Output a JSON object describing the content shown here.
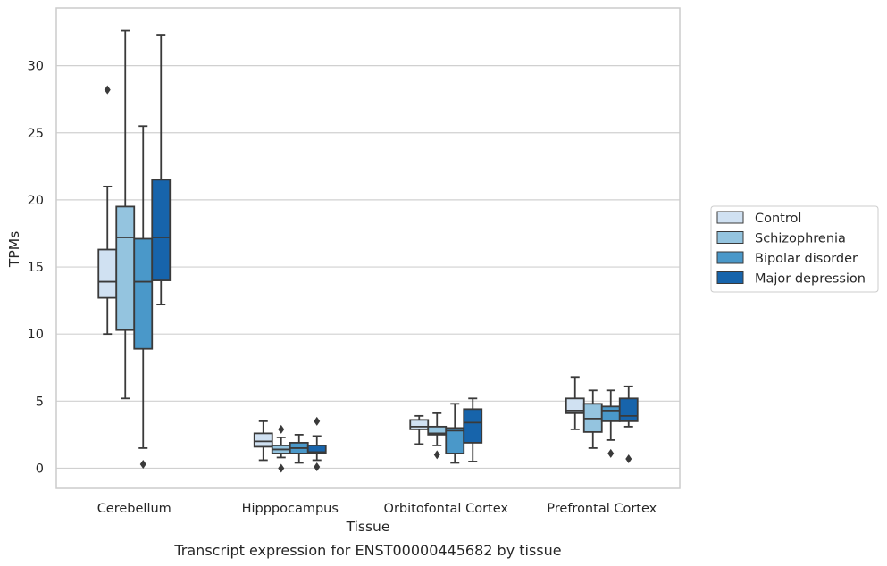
{
  "caption": "Transcript expression for ENST00000445682 by tissue",
  "chart_data": {
    "type": "box",
    "xlabel": "Tissue",
    "ylabel": "TPMs",
    "ylim": [
      -1.5,
      34.3
    ],
    "yticks": [
      0,
      5,
      10,
      15,
      20,
      25,
      30
    ],
    "grid": "horizontal",
    "legend_position": "right",
    "categories": [
      "Cerebellum",
      "Hipppocampus",
      "Orbitofontal Cortex",
      "Prefrontal Cortex"
    ],
    "series": [
      {
        "name": "Control",
        "color": "#d0e1f2",
        "boxes": [
          {
            "whisker_low": 10.0,
            "q1": 12.7,
            "median": 13.9,
            "q3": 16.3,
            "whisker_high": 21.0,
            "outliers": [
              28.2
            ]
          },
          {
            "whisker_low": 0.6,
            "q1": 1.6,
            "median": 2.0,
            "q3": 2.6,
            "whisker_high": 3.5,
            "outliers": []
          },
          {
            "whisker_low": 1.8,
            "q1": 2.9,
            "median": 3.1,
            "q3": 3.6,
            "whisker_high": 3.9,
            "outliers": []
          },
          {
            "whisker_low": 2.9,
            "q1": 4.1,
            "median": 4.3,
            "q3": 5.2,
            "whisker_high": 6.8,
            "outliers": []
          }
        ]
      },
      {
        "name": "Schizophrenia",
        "color": "#94c4df",
        "boxes": [
          {
            "whisker_low": 5.2,
            "q1": 10.3,
            "median": 17.2,
            "q3": 19.5,
            "whisker_high": 32.6,
            "outliers": []
          },
          {
            "whisker_low": 0.8,
            "q1": 1.1,
            "median": 1.4,
            "q3": 1.7,
            "whisker_high": 2.3,
            "outliers": [
              2.9,
              0.0
            ]
          },
          {
            "whisker_low": 1.7,
            "q1": 2.5,
            "median": 2.6,
            "q3": 3.1,
            "whisker_high": 4.1,
            "outliers": [
              1.0
            ]
          },
          {
            "whisker_low": 1.5,
            "q1": 2.7,
            "median": 3.7,
            "q3": 4.8,
            "whisker_high": 5.8,
            "outliers": []
          }
        ]
      },
      {
        "name": "Bipolar disorder",
        "color": "#4a98c9",
        "boxes": [
          {
            "whisker_low": 1.5,
            "q1": 8.9,
            "median": 13.9,
            "q3": 17.1,
            "whisker_high": 25.5,
            "outliers": [
              0.3
            ]
          },
          {
            "whisker_low": 0.4,
            "q1": 1.1,
            "median": 1.5,
            "q3": 1.9,
            "whisker_high": 2.5,
            "outliers": []
          },
          {
            "whisker_low": 0.4,
            "q1": 1.1,
            "median": 2.8,
            "q3": 3.0,
            "whisker_high": 4.8,
            "outliers": []
          },
          {
            "whisker_low": 2.1,
            "q1": 3.5,
            "median": 4.3,
            "q3": 4.6,
            "whisker_high": 5.8,
            "outliers": [
              1.1
            ]
          }
        ]
      },
      {
        "name": "Major depression",
        "color": "#1764ab",
        "boxes": [
          {
            "whisker_low": 12.2,
            "q1": 14.0,
            "median": 17.2,
            "q3": 21.5,
            "whisker_high": 32.3,
            "outliers": []
          },
          {
            "whisker_low": 0.6,
            "q1": 1.1,
            "median": 1.2,
            "q3": 1.7,
            "whisker_high": 2.4,
            "outliers": [
              3.5,
              0.1
            ]
          },
          {
            "whisker_low": 0.5,
            "q1": 1.9,
            "median": 3.4,
            "q3": 4.4,
            "whisker_high": 5.2,
            "outliers": []
          },
          {
            "whisker_low": 3.1,
            "q1": 3.5,
            "median": 3.9,
            "q3": 5.2,
            "whisker_high": 6.1,
            "outliers": [
              0.7
            ]
          }
        ]
      }
    ]
  }
}
